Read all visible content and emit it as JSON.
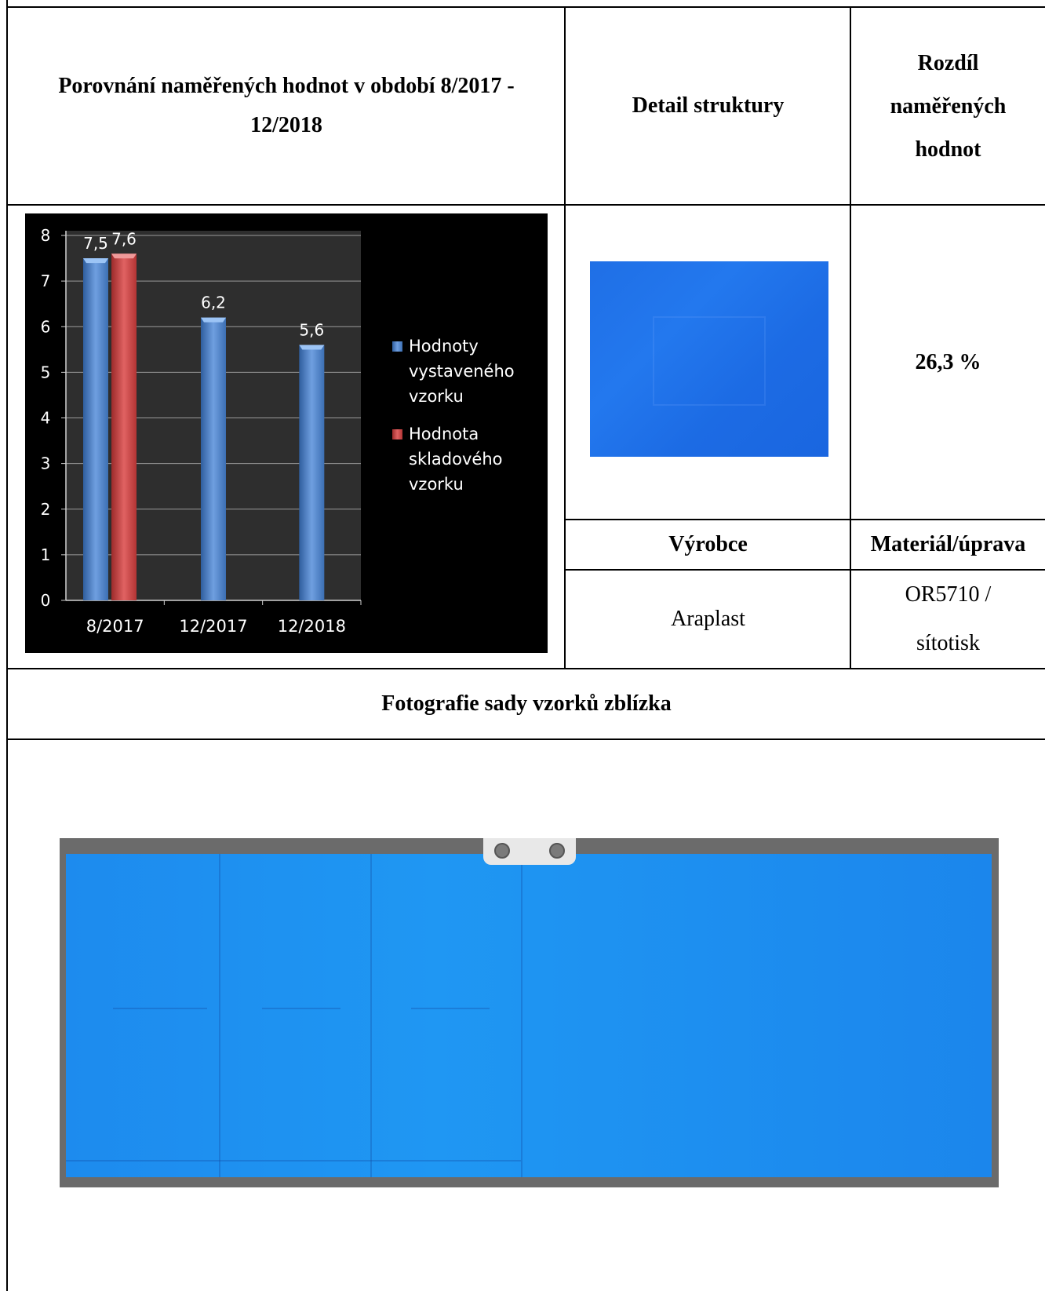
{
  "header": {
    "compare_line1": "Porovnání naměřených hodnot v období 8/2017 -",
    "compare_line2": "12/2018",
    "detail": "Detail struktury",
    "diff_line1": "Rozdíl",
    "diff_line2": "naměřených",
    "diff_line3": "hodnot"
  },
  "diff_value": "26,3 %",
  "labels": {
    "vyrobce": "Výrobce",
    "material": "Materiál/úprava"
  },
  "values": {
    "vyrobce": "Araplast",
    "material_line1": "OR5710 /",
    "material_line2": "sítotisk"
  },
  "photo_title": "Fotografie sady vzorků zblízka",
  "colors": {
    "series_blue": "#4a7fc4",
    "series_red": "#c23b3b",
    "chart_bg": "#000000",
    "texture_blue": "#1f6fe6",
    "panel_blue": "#1f97f3"
  },
  "chart_data": {
    "type": "bar",
    "categories": [
      "8/2017",
      "12/2017",
      "12/2018"
    ],
    "series": [
      {
        "name": "Hodnoty vystaveného vzorku",
        "values": [
          7.5,
          6.2,
          5.6
        ],
        "color": "#4a7fc4"
      },
      {
        "name": "Hodnota skladového vzorku",
        "values": [
          7.6,
          null,
          null
        ],
        "color": "#c23b3b"
      }
    ],
    "data_labels": [
      "7,5",
      "7,6",
      "6,2",
      "5,6"
    ],
    "y_ticks": [
      "0",
      "1",
      "2",
      "3",
      "4",
      "5",
      "6",
      "7",
      "8"
    ],
    "ylim": [
      0,
      8
    ],
    "grid": true,
    "legend_position": "right",
    "legend_lines": [
      [
        "Hodnoty",
        "vystaveného",
        "vzorku"
      ],
      [
        "Hodnota",
        "skladového",
        "vzorku"
      ]
    ],
    "title": "",
    "xlabel": "",
    "ylabel": ""
  }
}
